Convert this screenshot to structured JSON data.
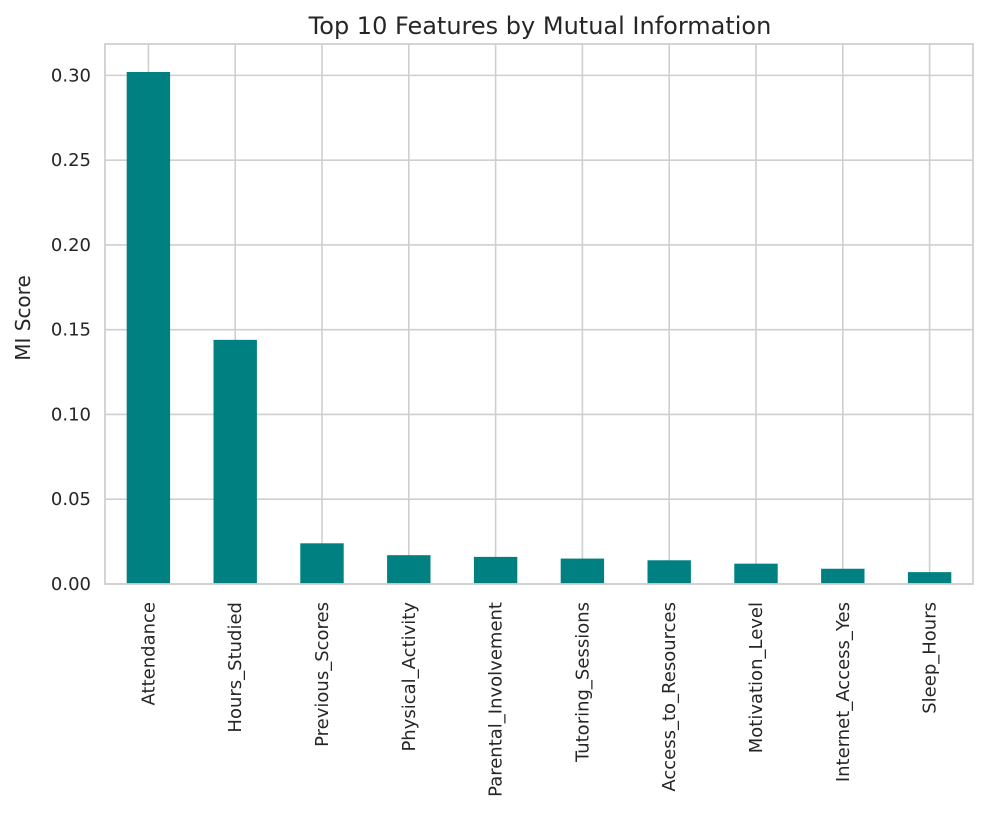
{
  "chart_data": {
    "type": "bar",
    "title": "Top 10 Features by Mutual Information",
    "xlabel": "",
    "ylabel": "MI Score",
    "categories": [
      "Attendance",
      "Hours_Studied",
      "Previous_Scores",
      "Physical_Activity",
      "Parental_Involvement",
      "Tutoring_Sessions",
      "Access_to_Resources",
      "Motivation_Level",
      "Internet_Access_Yes",
      "Sleep_Hours"
    ],
    "values": [
      0.302,
      0.144,
      0.024,
      0.017,
      0.016,
      0.015,
      0.014,
      0.012,
      0.009,
      0.007
    ],
    "yticks": [
      0.0,
      0.05,
      0.1,
      0.15,
      0.2,
      0.25,
      0.3
    ],
    "ytick_labels": [
      "0.00",
      "0.05",
      "0.10",
      "0.15",
      "0.20",
      "0.25",
      "0.30"
    ],
    "ylim": [
      0,
      0.3185
    ],
    "grid": true,
    "bar_color": "#008080"
  }
}
